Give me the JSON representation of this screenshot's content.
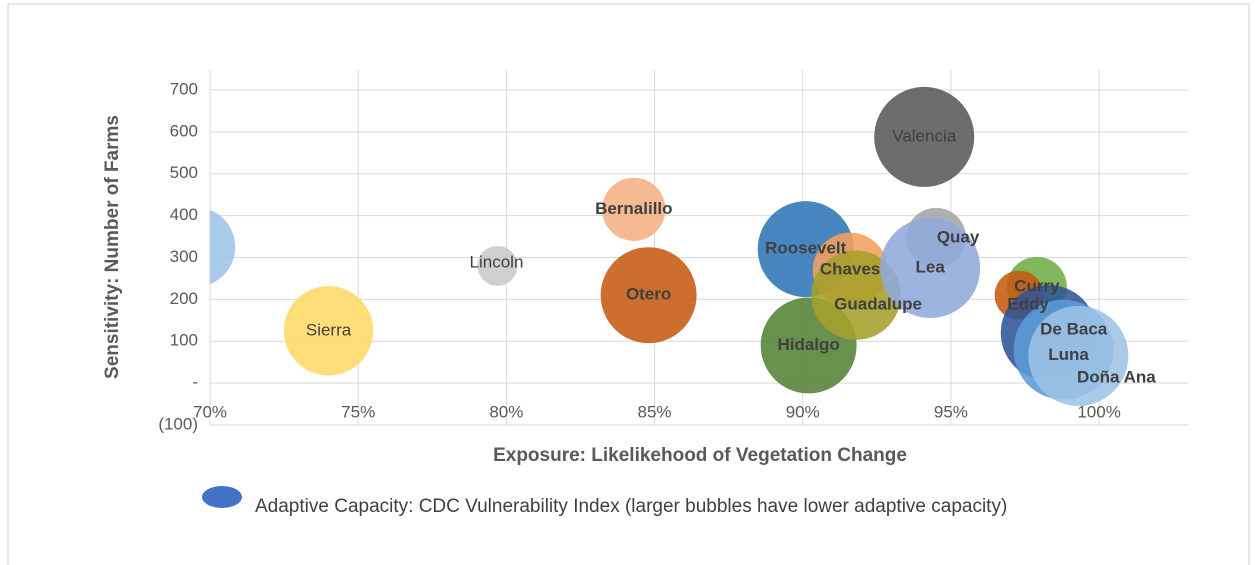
{
  "chart_data": {
    "type": "bubble",
    "x_label": "Exposure: Likelikehood of Vegetation Change",
    "y_label": "Sensitivity: Number of Farms",
    "legend": "Adaptive Capacity: CDC Vulnerability Index (larger bubbles have lower adaptive capacity)",
    "legend_color": "#4472c4",
    "xlim": [
      70,
      103
    ],
    "xticks": [
      {
        "value": 70,
        "label": "70%"
      },
      {
        "value": 75,
        "label": "75%"
      },
      {
        "value": 80,
        "label": "80%"
      },
      {
        "value": 85,
        "label": "85%"
      },
      {
        "value": 90,
        "label": "90%"
      },
      {
        "value": 95,
        "label": "95%"
      },
      {
        "value": 100,
        "label": "100%"
      }
    ],
    "ylim": [
      -100,
      700
    ],
    "yticks": [
      {
        "value": -100,
        "label": "(100)"
      },
      {
        "value": 0,
        "label": "-"
      },
      100,
      200,
      300,
      400,
      500,
      600,
      700
    ],
    "grid": true,
    "points": [
      {
        "label": null,
        "x": 69.5,
        "y": 325,
        "size": 16,
        "color": "#9dc3e6",
        "bold": false
      },
      {
        "label": "Sierra",
        "x": 74.0,
        "y": 125,
        "size": 20,
        "color": "#ffd966",
        "bold": false
      },
      {
        "label": "Lincoln",
        "x": 79.7,
        "y": 280,
        "size": 4,
        "color": "#c9c9c9",
        "bold": false
      },
      {
        "label": "Bernalillo",
        "x": 84.3,
        "y": 415,
        "size": 10,
        "color": "#f4b183",
        "bold": true
      },
      {
        "label": "Otero",
        "x": 84.8,
        "y": 210,
        "size": 23,
        "color": "#c55a11",
        "bold": true
      },
      {
        "label": "Roosevelt",
        "x": 90.1,
        "y": 320,
        "size": 23,
        "color": "#2e75b6",
        "bold": true
      },
      {
        "label": "Hidalgo",
        "x": 90.2,
        "y": 90,
        "size": 23,
        "color": "#548235",
        "bold": true
      },
      {
        "label": "Chaves",
        "x": 91.6,
        "y": 270,
        "size": 14,
        "color": "#f4a15d",
        "bold": true
      },
      {
        "label": "Guadalupe",
        "x": 91.8,
        "y": 210,
        "size": 20,
        "color": "#a5a02a",
        "bold": true
      },
      {
        "label": "Valencia",
        "x": 94.1,
        "y": 588,
        "size": 25,
        "color": "#595959",
        "bold": false
      },
      {
        "label": "Quay",
        "x": 94.5,
        "y": 347,
        "size": 9,
        "color": "#a5a5a5",
        "bold": true
      },
      {
        "label": "Lea",
        "x": 94.3,
        "y": 275,
        "size": 25,
        "color": "#8faadc",
        "bold": true
      },
      {
        "label": "Curry",
        "x": 97.9,
        "y": 230,
        "size": 9,
        "color": "#70ad47",
        "bold": true
      },
      {
        "label": "Eddy",
        "x": 97.3,
        "y": 210,
        "size": 6,
        "color": "#c55a11",
        "bold": true
      },
      {
        "label": "De Baca",
        "x": 98.3,
        "y": 120,
        "size": 23,
        "color": "#2f5597",
        "bold": true
      },
      {
        "label": "Luna",
        "x": 98.8,
        "y": 80,
        "size": 25,
        "color": "#5b9bd5",
        "bold": true
      },
      {
        "label": "Doña Ana",
        "x": 99.3,
        "y": 65,
        "size": 25,
        "color": "#9dc3e6",
        "bold": true
      }
    ]
  }
}
